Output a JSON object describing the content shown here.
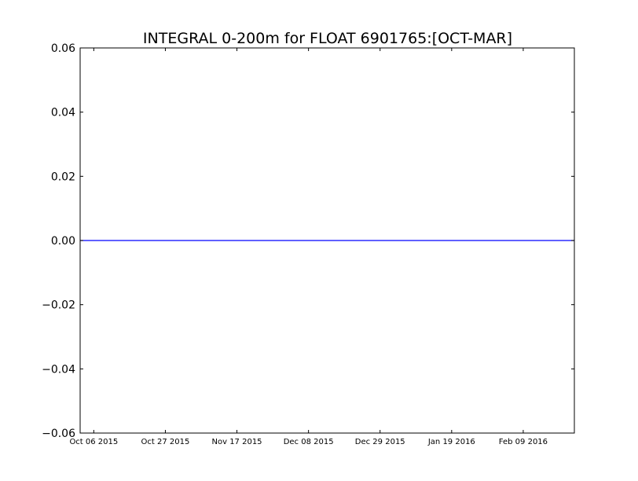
{
  "chart_data": {
    "type": "line",
    "title": "INTEGRAL 0-200m for FLOAT 6901765:[OCT-MAR]",
    "xlabel": "",
    "ylabel": "",
    "x_ticks": [
      "Oct 06 2015",
      "Oct 27 2015",
      "Nov 17 2015",
      "Dec 08 2015",
      "Dec 29 2015",
      "Jan 19 2016",
      "Feb 09 2016"
    ],
    "xlim": [
      "2015-10-02",
      "2016-02-24"
    ],
    "y_ticks": [
      "0.06",
      "0.04",
      "0.02",
      "0.00",
      "−0.02",
      "−0.04",
      "−0.06"
    ],
    "ylim": [
      -0.06,
      0.06
    ],
    "grid": false,
    "series": [
      {
        "color": "#0000ff",
        "x": [
          "2015-10-02",
          "2016-02-24"
        ],
        "values": [
          0.0,
          0.0
        ]
      }
    ]
  }
}
